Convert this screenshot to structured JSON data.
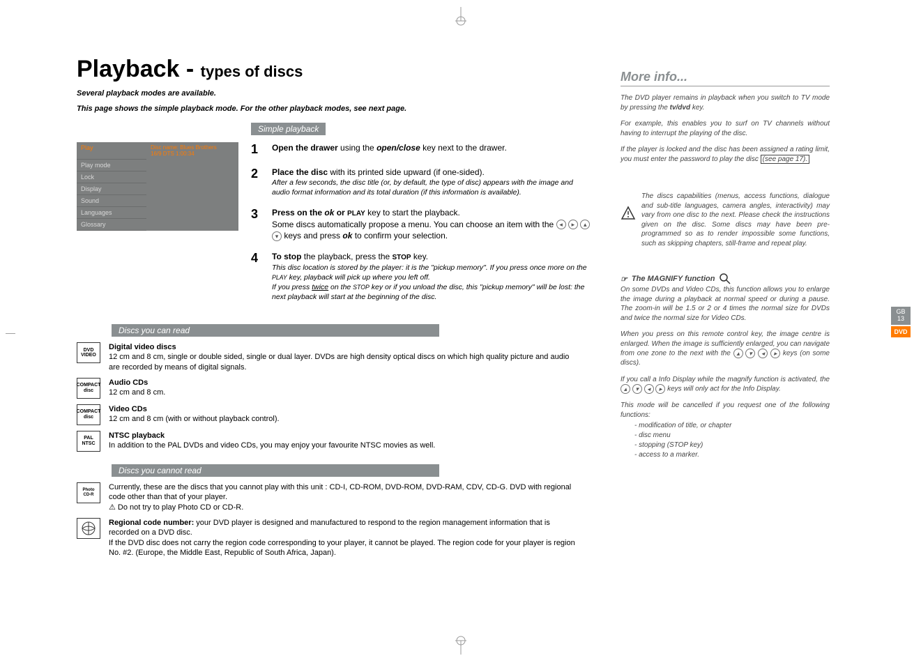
{
  "title": {
    "main": "Playback - ",
    "sub": "types of discs"
  },
  "intro_l1": "Several playback modes are available.",
  "intro_l2": "This page shows the simple playback mode. For the other playback modes, see next page.",
  "simple_bar": "Simple playback",
  "menu": {
    "items": [
      "Play",
      "Play mode",
      "Lock",
      "Display",
      "Sound",
      "Languages",
      "Glossary"
    ],
    "active_index": 0,
    "info_l1": "Disc name: Blues Brothers",
    "info_l2": "16/9 DTS 1:00:34"
  },
  "steps": [
    {
      "n": "1",
      "line1_html": "<b>Open the drawer</b> using the <b><i>open/close</i></b> key next to the drawer."
    },
    {
      "n": "2",
      "line1_html": "<b>Place the disc</b> with its printed side upward (if one-sided).",
      "note_html": "After a few seconds, the disc title (or, by default, the type of disc) appears with the image and audio format information and its total duration (if this information is available)."
    },
    {
      "n": "3",
      "line1_html": "<b>Press on the <i>ok</i> or <small>PLAY</small></b> key to start the playback.",
      "line2_html": "Some discs automatically propose a menu. You can choose an item with the <span class='nav-arrow'>◂</span> <span class='nav-arrow'>▸</span> <span class='nav-arrow'>▴</span> <span class='nav-arrow'>▾</span> keys and press <b><i>ok</i></b> to confirm your selection."
    },
    {
      "n": "4",
      "line1_html": "<b>To stop</b> the playback, press the <small><b>STOP</b></small> key.",
      "note_html": "This disc location is stored by the player: it is the \"pickup memory\". If you press once more on the <small>PLAY</small> key, playback will pick up where you left off.<br>If you press <u>twice</u> on the <small>STOP</small> key or if you unload the disc, this \"pickup memory\" will be lost: the next playback will start at the beginning of the disc."
    }
  ],
  "read_bar": "Discs you can read",
  "discs_read": [
    {
      "icon": "DVD VIDEO",
      "title": "Digital video discs",
      "body": "12 cm and 8 cm, single or double sided, single or dual layer. DVDs are high density optical discs on which high quality picture and audio are recorded by means of digital signals."
    },
    {
      "icon": "COMPACT disc",
      "title": "Audio CDs",
      "body": "12 cm and 8 cm."
    },
    {
      "icon": "COMPACT disc",
      "title": "Video CDs",
      "body": "12 cm and 8 cm (with or without playback control)."
    },
    {
      "icon": "PAL NTSC",
      "title": "NTSC playback",
      "body": "In addition to the PAL DVDs and video CDs, you may enjoy your favourite NTSC movies as well."
    }
  ],
  "noread_bar": "Discs you cannot read",
  "discs_noread": [
    {
      "icon": "Photo CD-R",
      "body_html": "Currently, these are the discs that you cannot play with this unit : CD-I, CD-ROM, DVD-ROM, DVD-RAM, CDV, CD-G. DVD with regional code other than that of your player.<br>⚠ Do not try to play Photo CD or CD-R."
    },
    {
      "icon": "region",
      "body_html": "<b>Regional code number:</b> your DVD player is designed and manufactured to respond to the region management information that is recorded on a DVD disc.<br>If the DVD disc does not carry the region code corresponding to your player, it cannot be played. The region code for your player is region No. #2. (Europe, the Middle East, Republic of South Africa, Japan)."
    }
  ],
  "moreinfo": {
    "title": "More info...",
    "p1": "The DVD player remains in playback when you switch to TV mode by pressing the <b>tv/dvd</b> key.",
    "p2": "For example, this enables you to surf on TV channels without having to interrupt the playing of the disc.",
    "p3_html": "If the player is locked and the disc has been assigned a rating limit, you must enter the password to play the disc <span class='boxed'>(see page 17).</span>",
    "note": "The discs capabilities (menus, access functions, dialogue and sub-title languages, camera angles, interactivity) may vary from one disc to the next. Please check the instructions given on the disc. Some discs may have been pre-programmed so as to render impossible some functions, such as skipping chapters, still-frame and repeat play.",
    "magnify_title": "The MAGNIFY function",
    "m1": "On some DVDs and Video CDs, this function allows you to enlarge the image during a playback at normal speed or during a pause. The zoom-in will be 1.5 or 2 or 4 times the normal size for DVDs and twice the normal size for Video CDs.",
    "m2_html": "When you press on this remote control key, the image centre is enlarged. When the image is sufficiently enlarged, you can navigate from one zone to the next with the <span class='nav-arrow'>▴</span> <span class='nav-arrow'>▾</span> <span class='nav-arrow'>◂</span> <span class='nav-arrow'>▸</span> keys (on some discs).",
    "m3_html": "If you call a Info Display while the magnify function is activated, the <span class='nav-arrow'>▴</span> <span class='nav-arrow'>▾</span> <span class='nav-arrow'>◂</span> <span class='nav-arrow'>▸</span> keys will only act for the Info Display.",
    "m4": "This mode will be cancelled if you request one of the following functions:",
    "list": [
      "- modification of title, or chapter",
      "- disc menu",
      "- stopping (STOP key)",
      "- access to a marker."
    ]
  },
  "tabs": {
    "gb": "GB",
    "gb_n": "13",
    "dvd": "DVD"
  },
  "colors": {
    "bar_bg": "#8a8f91",
    "accent": "#ff7b00",
    "menu_bg": "#7d7f7f",
    "text": "#000000",
    "mi_text": "#444444",
    "white": "#ffffff"
  },
  "fonts": {
    "body_pt": 11,
    "title_main_pt": 34,
    "title_sub_pt": 22,
    "step_num_pt": 18,
    "mi_pt": 10
  }
}
